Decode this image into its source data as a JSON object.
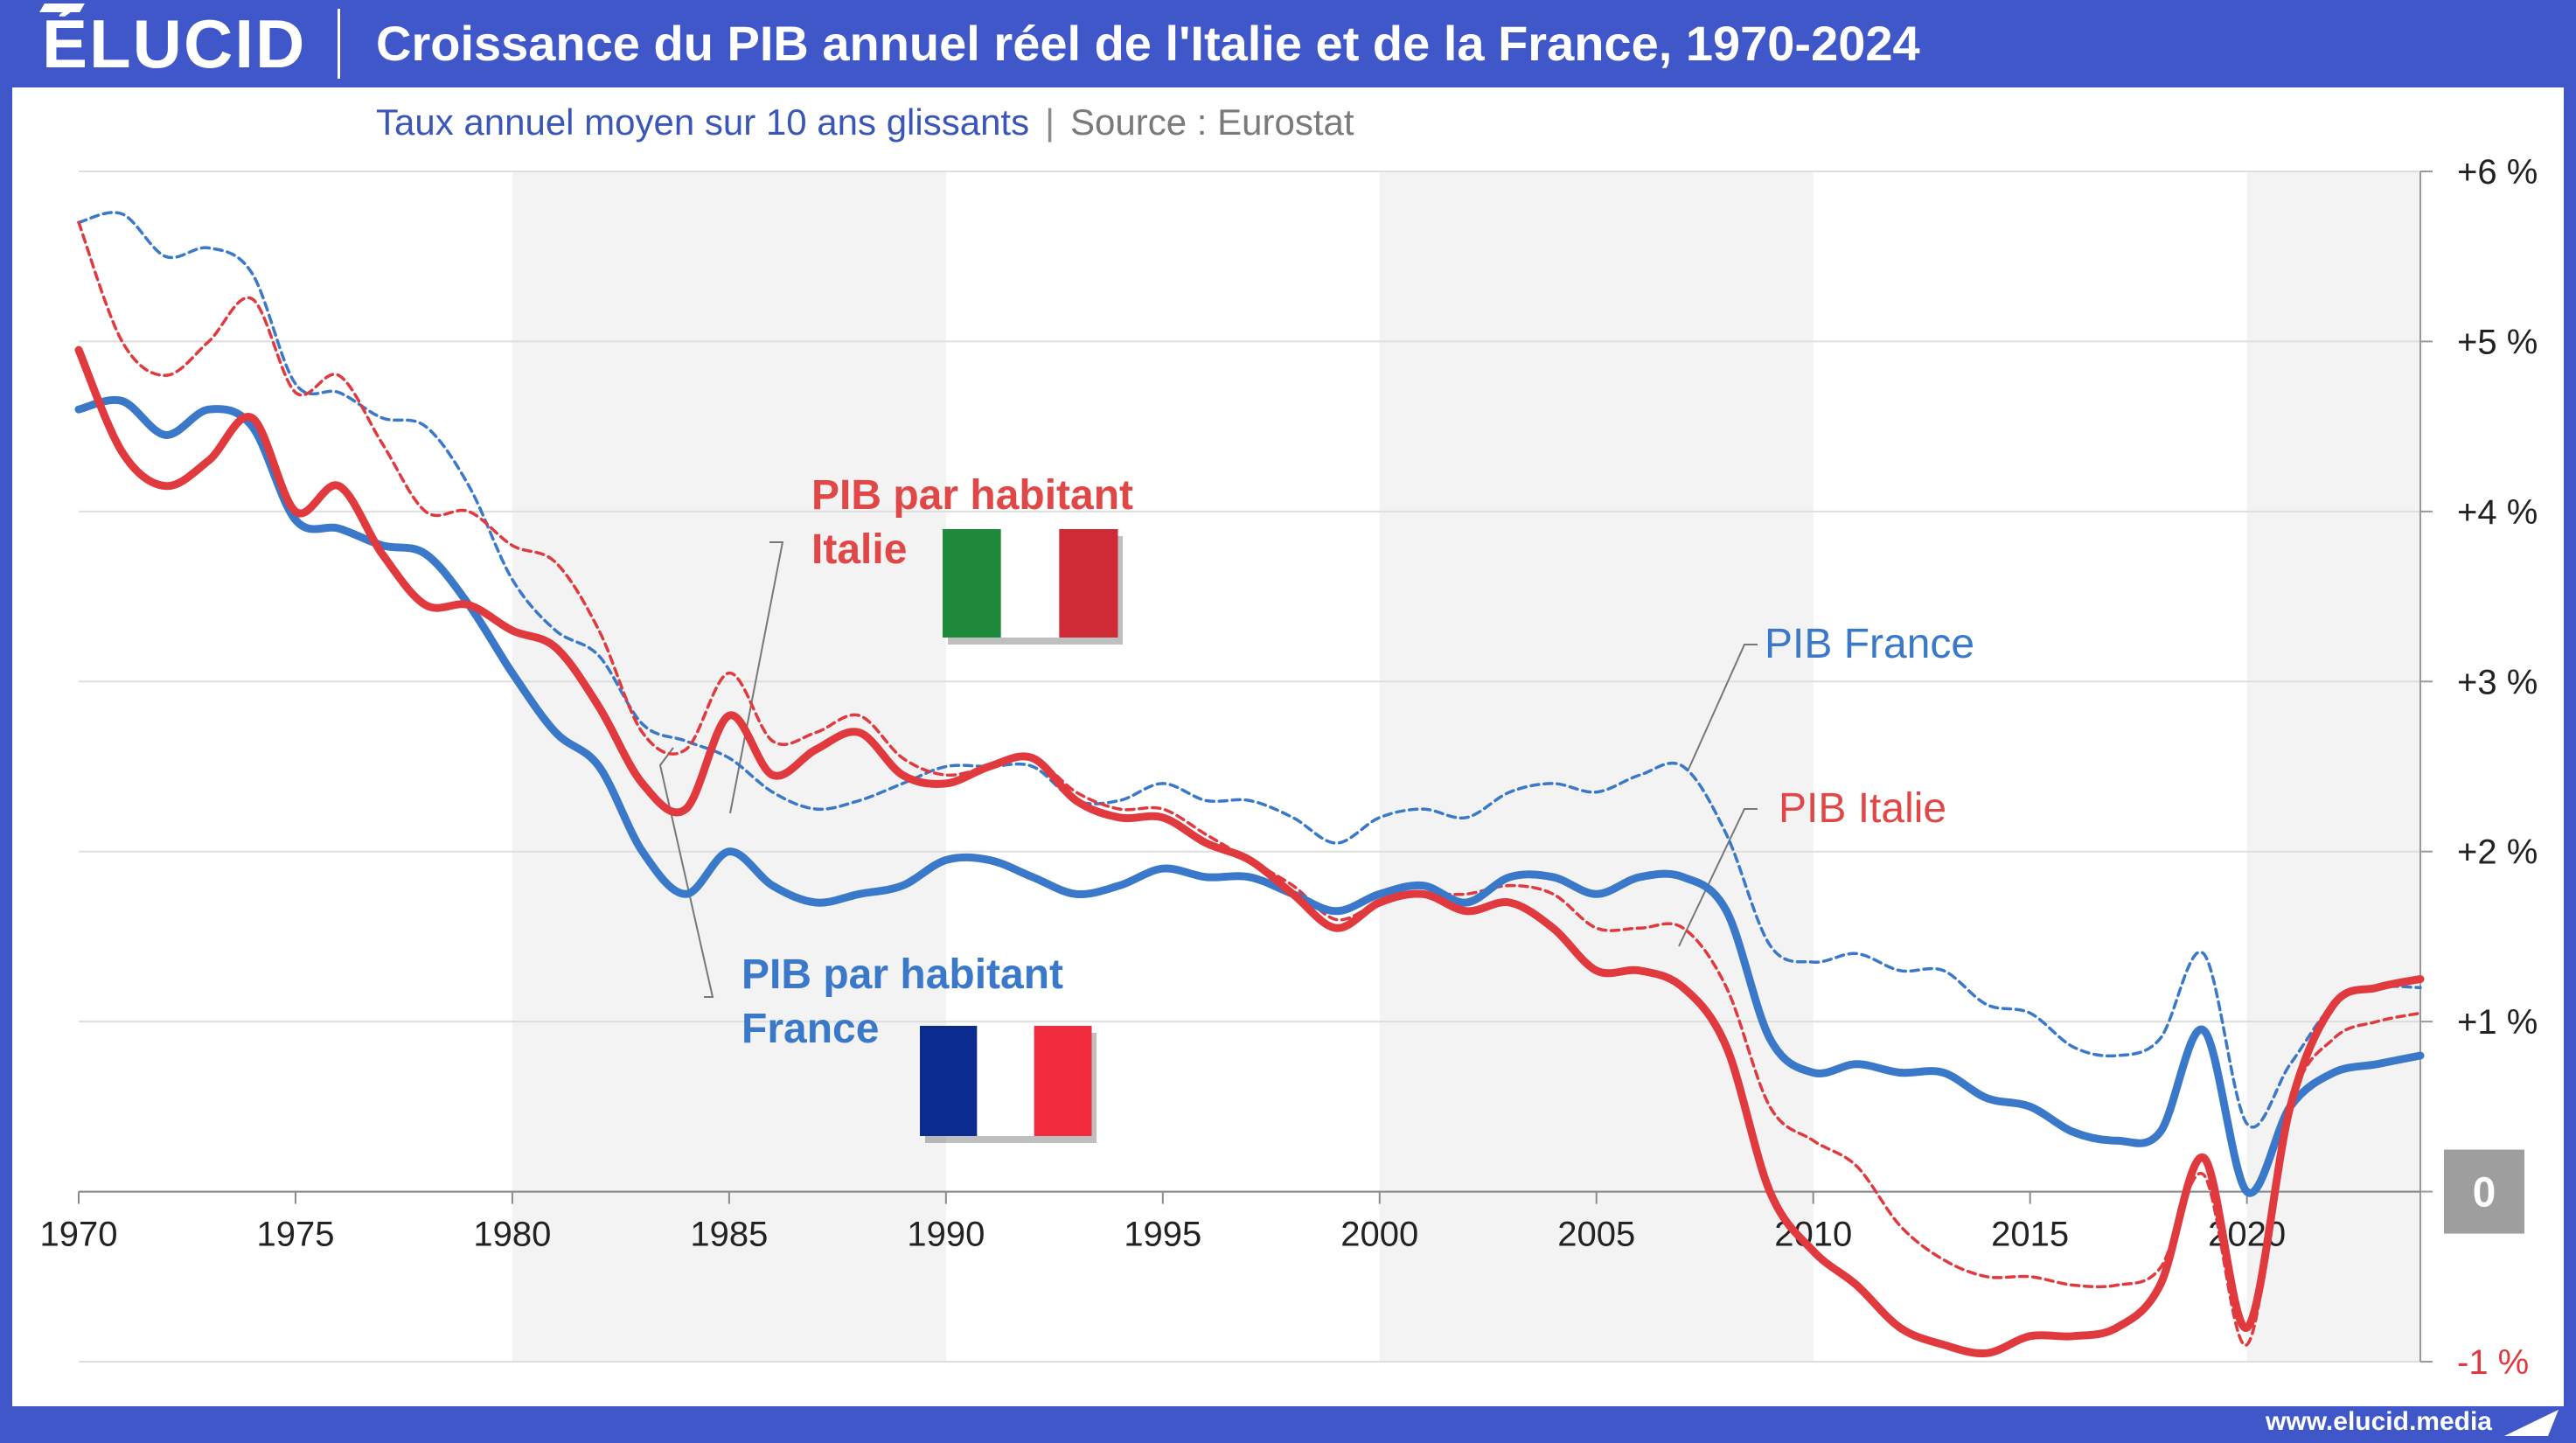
{
  "brand": "ÉLUCID",
  "title": "Croissance du PIB annuel réel de l'Italie et de la France, 1970-2024",
  "subtitle": "Taux annuel moyen sur 10 ans glissants",
  "subtitle_sep": "|",
  "source": "Source : Eurostat",
  "footer_url": "www.elucid.media",
  "colors": {
    "header": "#3f57c8",
    "france": "#3a78c9",
    "italy": "#e0393e",
    "italy_label": "#e04848",
    "zero_box": "#9e9e9e"
  },
  "chart_data": {
    "type": "line",
    "xlim": [
      1970,
      2024
    ],
    "ylim": [
      -1,
      6
    ],
    "x_ticks": [
      1970,
      1975,
      1980,
      1985,
      1990,
      1995,
      2000,
      2005,
      2010,
      2015,
      2020
    ],
    "x_tick_labels": [
      "1970",
      "1975",
      "1980",
      "1985",
      "1990",
      "1995",
      "2000",
      "2005",
      "2010",
      "2015",
      "2020"
    ],
    "y_ticks": [
      6,
      5,
      4,
      3,
      2,
      1,
      0,
      -1
    ],
    "y_tick_labels": [
      "+6 %",
      "+5 %",
      "+4 %",
      "+3 %",
      "+2 %",
      "+1 %",
      "0",
      "-1 %"
    ],
    "shaded_decades": [
      [
        1980,
        1990
      ],
      [
        2000,
        2010
      ],
      [
        2020,
        2024
      ]
    ],
    "grid": true,
    "series": [
      {
        "name": "PIB France",
        "style": "dashed",
        "color": "#3a78c9",
        "x": [
          1970,
          1971,
          1972,
          1973,
          1974,
          1975,
          1976,
          1977,
          1978,
          1979,
          1980,
          1981,
          1982,
          1983,
          1984,
          1985,
          1986,
          1987,
          1988,
          1989,
          1990,
          1991,
          1992,
          1993,
          1994,
          1995,
          1996,
          1997,
          1998,
          1999,
          2000,
          2001,
          2002,
          2003,
          2004,
          2005,
          2006,
          2007,
          2008,
          2009,
          2010,
          2011,
          2012,
          2013,
          2014,
          2015,
          2016,
          2017,
          2018,
          2019,
          2020,
          2021,
          2022,
          2023,
          2024
        ],
        "y": [
          5.7,
          5.75,
          5.5,
          5.55,
          5.4,
          4.75,
          4.7,
          4.55,
          4.5,
          4.15,
          3.6,
          3.3,
          3.15,
          2.75,
          2.65,
          2.55,
          2.35,
          2.25,
          2.3,
          2.4,
          2.5,
          2.5,
          2.5,
          2.3,
          2.3,
          2.4,
          2.3,
          2.3,
          2.2,
          2.05,
          2.2,
          2.25,
          2.2,
          2.35,
          2.4,
          2.35,
          2.45,
          2.5,
          2.1,
          1.45,
          1.35,
          1.4,
          1.3,
          1.3,
          1.1,
          1.05,
          0.85,
          0.8,
          0.9,
          1.4,
          0.4,
          0.75,
          1.1,
          1.2,
          1.2
        ]
      },
      {
        "name": "PIB Italie",
        "style": "dashed",
        "color": "#e0393e",
        "x": [
          1970,
          1971,
          1972,
          1973,
          1974,
          1975,
          1976,
          1977,
          1978,
          1979,
          1980,
          1981,
          1982,
          1983,
          1984,
          1985,
          1986,
          1987,
          1988,
          1989,
          1990,
          1991,
          1992,
          1993,
          1994,
          1995,
          1996,
          1997,
          1998,
          1999,
          2000,
          2001,
          2002,
          2003,
          2004,
          2005,
          2006,
          2007,
          2008,
          2009,
          2010,
          2011,
          2012,
          2013,
          2014,
          2015,
          2016,
          2017,
          2018,
          2019,
          2020,
          2021,
          2022,
          2023,
          2024
        ],
        "y": [
          5.7,
          5.0,
          4.8,
          5.0,
          5.25,
          4.7,
          4.8,
          4.4,
          4.0,
          4.0,
          3.8,
          3.7,
          3.3,
          2.7,
          2.6,
          3.05,
          2.65,
          2.7,
          2.8,
          2.55,
          2.45,
          2.5,
          2.55,
          2.35,
          2.25,
          2.25,
          2.1,
          1.95,
          1.8,
          1.6,
          1.7,
          1.75,
          1.75,
          1.8,
          1.75,
          1.55,
          1.55,
          1.55,
          1.2,
          0.5,
          0.3,
          0.15,
          -0.2,
          -0.4,
          -0.5,
          -0.5,
          -0.55,
          -0.55,
          -0.45,
          0.1,
          -0.9,
          0.5,
          0.9,
          1.0,
          1.05
        ]
      },
      {
        "name": "PIB par habitant France",
        "style": "solid",
        "color": "#3a78c9",
        "x": [
          1970,
          1971,
          1972,
          1973,
          1974,
          1975,
          1976,
          1977,
          1978,
          1979,
          1980,
          1981,
          1982,
          1983,
          1984,
          1985,
          1986,
          1987,
          1988,
          1989,
          1990,
          1991,
          1992,
          1993,
          1994,
          1995,
          1996,
          1997,
          1998,
          1999,
          2000,
          2001,
          2002,
          2003,
          2004,
          2005,
          2006,
          2007,
          2008,
          2009,
          2010,
          2011,
          2012,
          2013,
          2014,
          2015,
          2016,
          2017,
          2018,
          2019,
          2020,
          2021,
          2022,
          2023,
          2024
        ],
        "y": [
          4.6,
          4.65,
          4.45,
          4.6,
          4.5,
          3.95,
          3.9,
          3.8,
          3.75,
          3.45,
          3.05,
          2.7,
          2.5,
          2.0,
          1.75,
          2.0,
          1.8,
          1.7,
          1.75,
          1.8,
          1.95,
          1.95,
          1.85,
          1.75,
          1.8,
          1.9,
          1.85,
          1.85,
          1.75,
          1.65,
          1.75,
          1.8,
          1.7,
          1.85,
          1.85,
          1.75,
          1.85,
          1.85,
          1.65,
          0.9,
          0.7,
          0.75,
          0.7,
          0.7,
          0.55,
          0.5,
          0.35,
          0.3,
          0.35,
          0.95,
          0.0,
          0.5,
          0.7,
          0.75,
          0.8
        ]
      },
      {
        "name": "PIB par habitant Italie",
        "style": "solid",
        "color": "#e0393e",
        "x": [
          1970,
          1971,
          1972,
          1973,
          1974,
          1975,
          1976,
          1977,
          1978,
          1979,
          1980,
          1981,
          1982,
          1983,
          1984,
          1985,
          1986,
          1987,
          1988,
          1989,
          1990,
          1991,
          1992,
          1993,
          1994,
          1995,
          1996,
          1997,
          1998,
          1999,
          2000,
          2001,
          2002,
          2003,
          2004,
          2005,
          2006,
          2007,
          2008,
          2009,
          2010,
          2011,
          2012,
          2013,
          2014,
          2015,
          2016,
          2017,
          2018,
          2019,
          2020,
          2021,
          2022,
          2023,
          2024
        ],
        "y": [
          4.95,
          4.35,
          4.15,
          4.3,
          4.55,
          4.0,
          4.15,
          3.75,
          3.45,
          3.45,
          3.3,
          3.2,
          2.85,
          2.4,
          2.25,
          2.8,
          2.45,
          2.6,
          2.7,
          2.45,
          2.4,
          2.5,
          2.55,
          2.3,
          2.2,
          2.2,
          2.05,
          1.95,
          1.75,
          1.55,
          1.7,
          1.75,
          1.65,
          1.7,
          1.55,
          1.3,
          1.3,
          1.2,
          0.85,
          0.0,
          -0.35,
          -0.55,
          -0.8,
          -0.9,
          -0.95,
          -0.85,
          -0.85,
          -0.8,
          -0.55,
          0.2,
          -0.8,
          0.5,
          1.1,
          1.2,
          1.25
        ]
      }
    ],
    "annotations": [
      {
        "text_lines": [
          "PIB par habitant",
          "Italie"
        ],
        "color": "#e04848",
        "flag": "italy"
      },
      {
        "text_lines": [
          "PIB par habitant",
          "France"
        ],
        "color": "#3a78c9",
        "flag": "france"
      },
      {
        "text_lines": [
          "PIB France"
        ],
        "color": "#3a78c9"
      },
      {
        "text_lines": [
          "PIB Italie"
        ],
        "color": "#e04848"
      }
    ]
  }
}
